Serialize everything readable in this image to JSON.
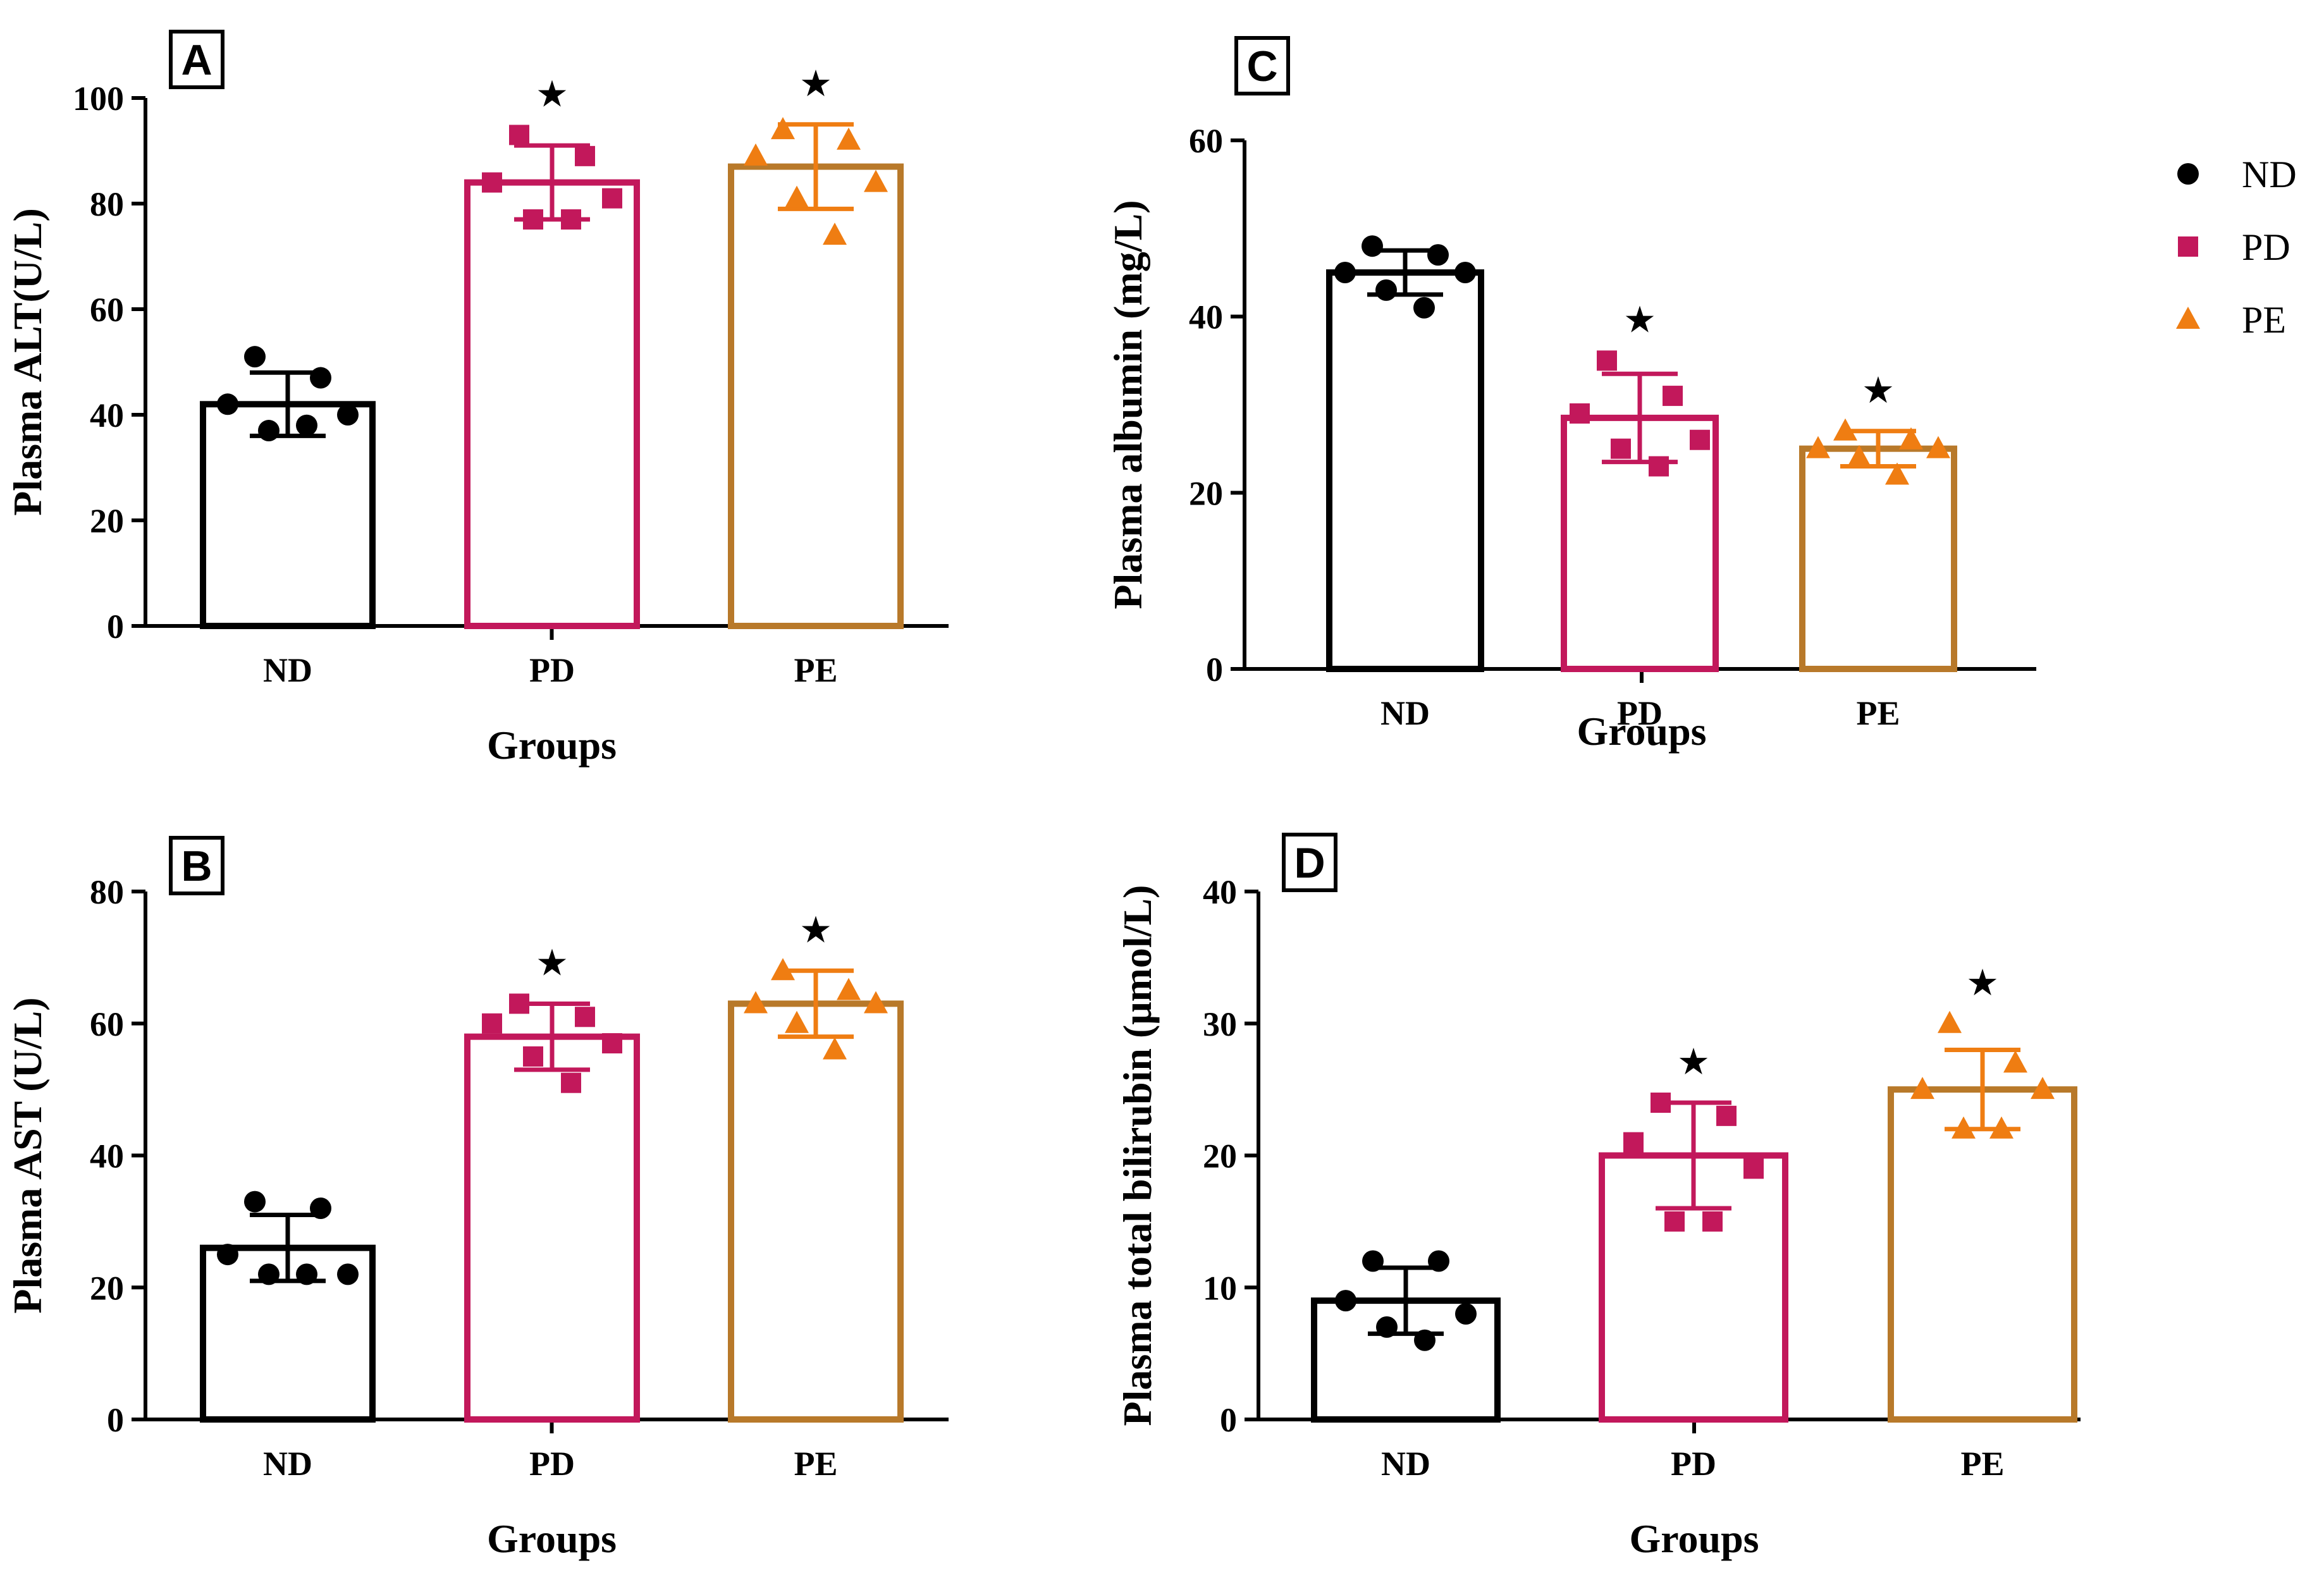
{
  "figure": {
    "legend": [
      {
        "label": "ND",
        "color": "#000000",
        "marker": "circle"
      },
      {
        "label": "PD",
        "color": "#c2185b",
        "marker": "square"
      },
      {
        "label": "PE",
        "color": "#ef7d12",
        "marker": "triangle"
      }
    ],
    "bar_colors": {
      "ND": "#000000",
      "PD": "#c2185b",
      "PE": "#b8792a"
    },
    "significance_symbol": "★"
  },
  "chart_data": [
    {
      "panel": "A",
      "type": "bar",
      "title": "",
      "xlabel": "Groups",
      "ylabel": "Plasma ALT(U/L)",
      "categories": [
        "ND",
        "PD",
        "PE"
      ],
      "values": [
        42,
        84,
        87
      ],
      "error": [
        6,
        7,
        8
      ],
      "ylim": [
        0,
        100
      ],
      "yticks": [
        0,
        20,
        40,
        60,
        80,
        100
      ],
      "significant": [
        false,
        true,
        true
      ],
      "points": [
        [
          51,
          47,
          42,
          40,
          37,
          38
        ],
        [
          93,
          89,
          84,
          81,
          77,
          77
        ],
        [
          94,
          92,
          89,
          84,
          81,
          74
        ]
      ]
    },
    {
      "panel": "B",
      "type": "bar",
      "title": "",
      "xlabel": "Groups",
      "ylabel": "Plasma AST (U/L)",
      "categories": [
        "ND",
        "PD",
        "PE"
      ],
      "values": [
        26,
        58,
        63
      ],
      "error": [
        5,
        5,
        5
      ],
      "ylim": [
        0,
        80
      ],
      "yticks": [
        0,
        20,
        40,
        60,
        80
      ],
      "significant": [
        false,
        true,
        true
      ],
      "points": [
        [
          33,
          32,
          25,
          22,
          22,
          22
        ],
        [
          63,
          61,
          60,
          57,
          55,
          51
        ],
        [
          68,
          65,
          63,
          63,
          60,
          56
        ]
      ]
    },
    {
      "panel": "C",
      "type": "bar",
      "title": "",
      "xlabel": "Groups",
      "ylabel": "Plasma albumin  (mg/L)",
      "categories": [
        "ND",
        "PD",
        "PE"
      ],
      "values": [
        45,
        28.5,
        25
      ],
      "error": [
        2.5,
        5,
        2
      ],
      "ylim": [
        0,
        60
      ],
      "yticks": [
        0,
        20,
        40,
        60
      ],
      "significant": [
        false,
        true,
        true
      ],
      "points": [
        [
          48,
          47,
          45,
          45,
          43,
          41
        ],
        [
          35,
          31,
          29,
          26,
          25,
          23
        ],
        [
          27,
          26,
          25,
          25,
          24,
          22
        ]
      ]
    },
    {
      "panel": "D",
      "type": "bar",
      "title": "",
      "xlabel": "Groups",
      "ylabel": "Plasma total bilirubin (μmol/L)",
      "categories": [
        "ND",
        "PD",
        "PE"
      ],
      "values": [
        9,
        20,
        25
      ],
      "error": [
        2.5,
        4,
        3
      ],
      "ylim": [
        0,
        40
      ],
      "yticks": [
        0,
        10,
        20,
        30,
        40
      ],
      "significant": [
        false,
        true,
        true
      ],
      "points": [
        [
          12,
          12,
          9,
          8,
          7,
          6
        ],
        [
          24,
          23,
          21,
          19,
          15,
          15
        ],
        [
          30,
          27,
          25,
          25,
          22,
          22
        ]
      ]
    }
  ]
}
